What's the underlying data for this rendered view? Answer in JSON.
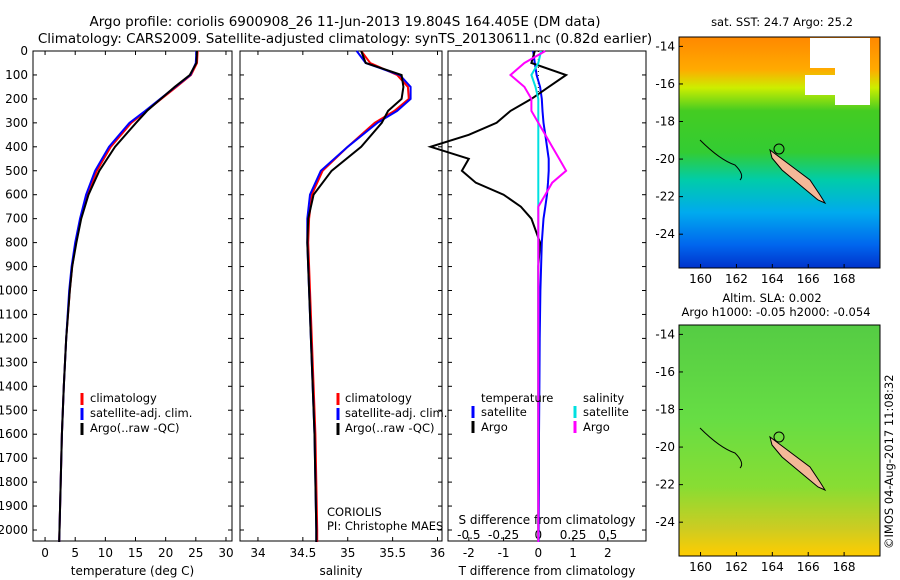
{
  "title_line1": "Argo profile: coriolis 6900908_26 11-Jun-2013 19.804S 164.405E (DM data)",
  "title_line2": "Climatology: CARS2009. Satellite-adjusted climatology: synTS_20130611.nc (0.82d earlier)",
  "depth_ticks": [
    "0",
    "100",
    "200",
    "300",
    "400",
    "500",
    "600",
    "700",
    "800",
    "900",
    "1000",
    "1100",
    "1200",
    "1300",
    "1400",
    "1500",
    "1600",
    "1700",
    "1800",
    "1900",
    "2000"
  ],
  "credit": "CORIOLIS",
  "pi": "PI: Christophe MAES",
  "timestamp": "©IMOS 04-Aug-2017 11:08:32",
  "colors": {
    "climatology": "#ff0000",
    "satellite": "#0000ff",
    "argo": "#000000",
    "sal_sat": "#00e0e0",
    "sal_argo": "#ff00ff"
  },
  "legend": {
    "clim": "climatology",
    "sat": "satellite-adj. clim.",
    "argo": "Argo(..raw -QC)"
  },
  "diff_legend": {
    "temperature": "temperature",
    "salinity": "salinity",
    "satellite": "satellite",
    "argo": "Argo"
  },
  "sst_map": {
    "title": "sat. SST: 24.7 Argo: 25.2",
    "lat_ticks": [
      "-14",
      "-16",
      "-18",
      "-20",
      "-22",
      "-24"
    ],
    "lon_ticks": [
      "160",
      "162",
      "164",
      "166",
      "168"
    ]
  },
  "sla_map": {
    "title1": "Altim. SLA: 0.002",
    "title2": "Argo h1000: -0.05 h2000: -0.054",
    "lat_ticks": [
      "-14",
      "-16",
      "-18",
      "-20",
      "-22",
      "-24"
    ],
    "lon_ticks": [
      "160",
      "162",
      "164",
      "166",
      "168"
    ]
  },
  "chart_data": [
    {
      "type": "line",
      "xlabel": "temperature (deg C)",
      "ylabel": "",
      "xlim": [
        -2,
        31
      ],
      "ylim": [
        2100,
        0
      ],
      "x_ticks": [
        "0",
        "5",
        "10",
        "15",
        "20",
        "25",
        "30"
      ],
      "depth": [
        0,
        50,
        100,
        150,
        200,
        250,
        300,
        400,
        500,
        600,
        700,
        800,
        900,
        1000,
        1200,
        1400,
        1600,
        1800,
        2000,
        2050
      ],
      "series": [
        {
          "name": "climatology",
          "values": [
            25.3,
            25.2,
            24.2,
            21.8,
            19.3,
            16.8,
            14.3,
            10.9,
            8.6,
            7.0,
            5.9,
            5.1,
            4.5,
            4.1,
            3.5,
            3.1,
            2.8,
            2.6,
            2.4,
            2.35
          ]
        },
        {
          "name": "satellite-adj. clim.",
          "values": [
            25.1,
            25.0,
            24.1,
            21.6,
            19.1,
            16.6,
            14.0,
            10.6,
            8.3,
            6.8,
            5.8,
            5.0,
            4.4,
            4.0,
            3.5,
            3.1,
            2.8,
            2.6,
            2.4,
            2.35
          ]
        },
        {
          "name": "Argo(..raw -QC)",
          "values": [
            25.2,
            25.1,
            24.0,
            21.5,
            19.2,
            16.9,
            15.1,
            11.6,
            9.0,
            7.2,
            6.0,
            5.2,
            4.5,
            4.1,
            3.5,
            3.1,
            2.8,
            2.6,
            2.4,
            2.35
          ]
        }
      ]
    },
    {
      "type": "line",
      "xlabel": "salinity",
      "ylabel": "",
      "xlim": [
        33.8,
        36.05
      ],
      "ylim": [
        2100,
        0
      ],
      "x_ticks": [
        "34",
        "34.5",
        "35",
        "35.5",
        "36"
      ],
      "depth": [
        0,
        50,
        100,
        150,
        200,
        250,
        300,
        400,
        500,
        600,
        700,
        800,
        900,
        1000,
        1200,
        1400,
        1600,
        1800,
        2000,
        2050
      ],
      "series": [
        {
          "name": "climatology",
          "values": [
            35.15,
            35.25,
            35.55,
            35.67,
            35.68,
            35.52,
            35.3,
            35.0,
            34.72,
            34.6,
            34.57,
            34.56,
            34.57,
            34.58,
            34.6,
            34.62,
            34.64,
            34.65,
            34.66,
            34.66
          ]
        },
        {
          "name": "satellite-adj. clim.",
          "values": [
            35.1,
            35.2,
            35.58,
            35.7,
            35.7,
            35.55,
            35.33,
            35.0,
            34.7,
            34.58,
            34.55,
            34.55,
            34.56,
            34.57,
            34.59,
            34.61,
            34.63,
            34.64,
            34.65,
            34.65
          ]
        },
        {
          "name": "Argo(..raw -QC)",
          "values": [
            35.15,
            35.2,
            35.6,
            35.62,
            35.6,
            35.45,
            35.38,
            35.15,
            34.82,
            34.62,
            34.56,
            34.55,
            34.56,
            34.57,
            34.59,
            34.61,
            34.63,
            34.64,
            34.65,
            34.65
          ]
        }
      ]
    },
    {
      "type": "line",
      "xlabel": "T difference from climatology",
      "top_label": "S difference from climatology",
      "ylabel": "",
      "xlim": [
        -2.6,
        3.1
      ],
      "ylim": [
        2100,
        0
      ],
      "x_ticks": [
        "-2",
        "-1",
        "0",
        "1",
        "2"
      ],
      "s_ticks": [
        "-0.5",
        "-0.25",
        "0",
        "0.25",
        "0.5"
      ],
      "depth": [
        0,
        50,
        100,
        150,
        200,
        250,
        300,
        350,
        400,
        450,
        500,
        550,
        600,
        650,
        700,
        800,
        900,
        1000,
        1200,
        1400,
        1600,
        1800,
        2000,
        2050
      ],
      "series": [
        {
          "name": "temperature satellite",
          "values": [
            -0.15,
            -0.1,
            -0.05,
            0.05,
            0.1,
            0.12,
            0.15,
            0.2,
            0.25,
            0.3,
            0.3,
            0.28,
            0.25,
            0.2,
            0.15,
            0.1,
            0.08,
            0.06,
            0.04,
            0.03,
            0.02,
            0.02,
            0.01,
            0.01
          ]
        },
        {
          "name": "temperature Argo",
          "values": [
            -0.1,
            -0.2,
            0.8,
            0.3,
            -0.2,
            -0.8,
            -1.2,
            -2.0,
            -3.1,
            -2.0,
            -2.2,
            -1.8,
            -1.0,
            -0.5,
            -0.2,
            0.05,
            0.0,
            0.0,
            0.0,
            0.0,
            0.0,
            0.0,
            0.0,
            0.0
          ]
        },
        {
          "name": "salinity satellite",
          "values": [
            0.02,
            0.0,
            -0.05,
            -0.02,
            0.0,
            0.0,
            0.0,
            0.0,
            0.0,
            0.0,
            0.0,
            0.0,
            0.0,
            0.0,
            0.0,
            0.0,
            0.0,
            0.0,
            0.0,
            0.0,
            0.0,
            0.0,
            0.0,
            0.0
          ]
        },
        {
          "name": "salinity Argo",
          "values": [
            0.05,
            -0.1,
            -0.2,
            -0.1,
            -0.05,
            -0.05,
            0.0,
            0.05,
            0.1,
            0.15,
            0.2,
            0.1,
            0.05,
            0.0,
            0.0,
            0.0,
            0.0,
            0.0,
            0.0,
            0.0,
            0.0,
            0.0,
            0.0,
            0.0
          ]
        }
      ]
    }
  ]
}
